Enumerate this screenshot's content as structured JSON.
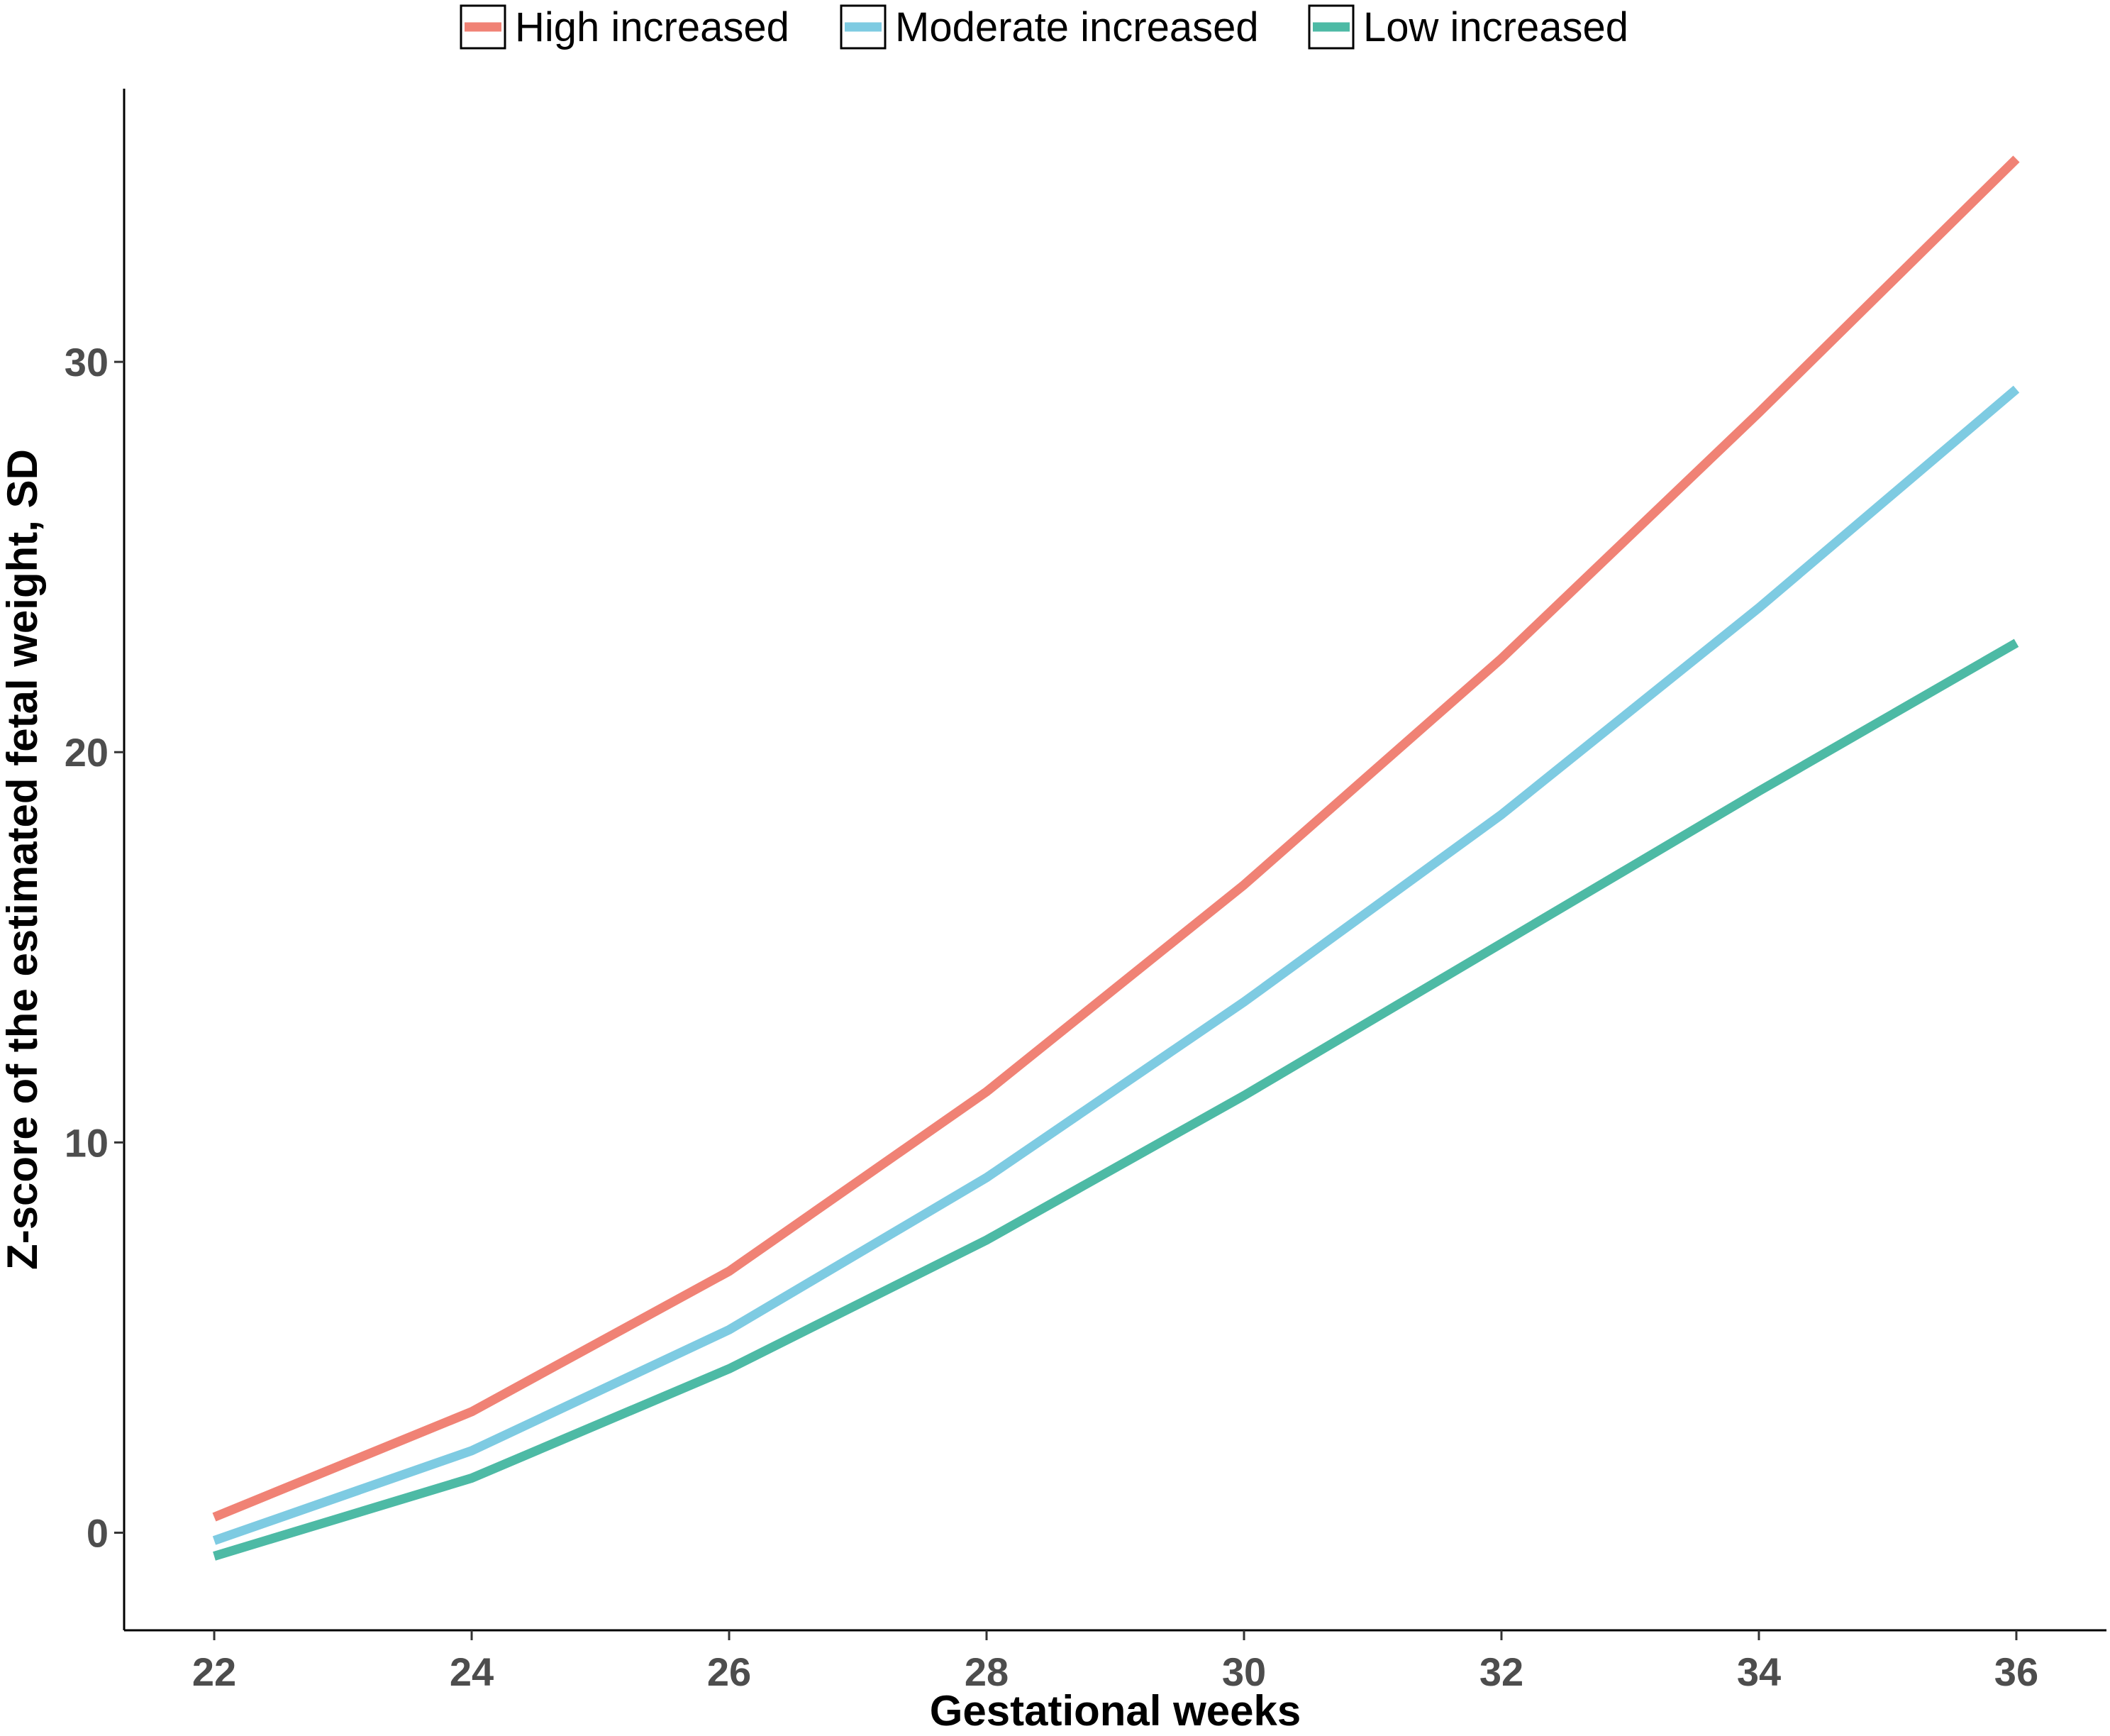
{
  "chart_data": {
    "type": "line",
    "title": "",
    "xlabel": "Gestational weeks",
    "ylabel": "Z-score of the estimated fetal weight, SD",
    "x": [
      22,
      24,
      26,
      28,
      30,
      32,
      34,
      36
    ],
    "xlim": [
      21.3,
      36.7
    ],
    "ylim": [
      -2.5,
      37.0
    ],
    "x_ticks": [
      "22",
      "24",
      "26",
      "28",
      "30",
      "32",
      "34",
      "36"
    ],
    "y_ticks": [
      "0",
      "10",
      "20",
      "30"
    ],
    "y_tick_values": [
      0,
      10,
      20,
      30
    ],
    "grid": false,
    "legend_position": "top",
    "series": [
      {
        "name": "High increased",
        "color": "#F08275",
        "values": [
          0.4,
          3.1,
          6.7,
          11.3,
          16.6,
          22.4,
          28.7,
          35.2
        ]
      },
      {
        "name": "Moderate increased",
        "color": "#7ECBE2",
        "values": [
          -0.2,
          2.1,
          5.2,
          9.1,
          13.6,
          18.4,
          23.7,
          29.3
        ]
      },
      {
        "name": "Low increased",
        "color": "#4DBAA5",
        "values": [
          -0.6,
          1.4,
          4.2,
          7.5,
          11.2,
          15.1,
          19.0,
          22.8
        ]
      }
    ]
  }
}
